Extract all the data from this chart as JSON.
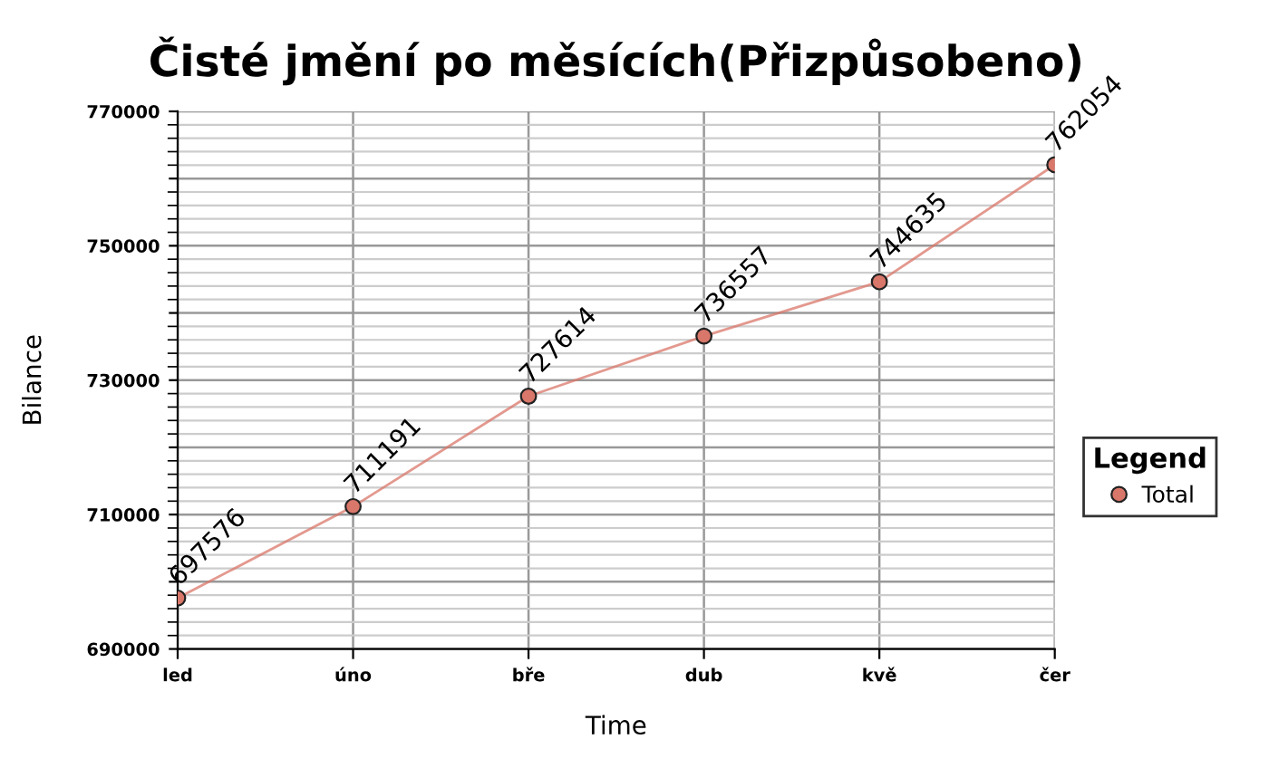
{
  "chart_data": {
    "type": "line",
    "title": "Čisté jmění po měsících(Přizpůsobeno)",
    "xlabel": "Time",
    "ylabel": "Bilance",
    "legend_title": "Legend",
    "categories": [
      "led",
      "úno",
      "bře",
      "dub",
      "kvě",
      "čer"
    ],
    "series": [
      {
        "name": "Total",
        "color": "#d9776a",
        "values": [
          697576,
          711191,
          727614,
          736557,
          744635,
          762054
        ]
      }
    ],
    "ylim": [
      690000,
      770000
    ],
    "yticks": [
      690000,
      {
        "value": 700000,
        "label": null
      },
      710000,
      {
        "value": 720000,
        "label": null
      },
      730000,
      {
        "value": 740000,
        "label": null
      },
      750000,
      {
        "value": 760000,
        "label": null
      },
      770000
    ],
    "data_labels": true,
    "grid": true,
    "legend": "right",
    "marker": "circle",
    "line_style": "solid"
  }
}
